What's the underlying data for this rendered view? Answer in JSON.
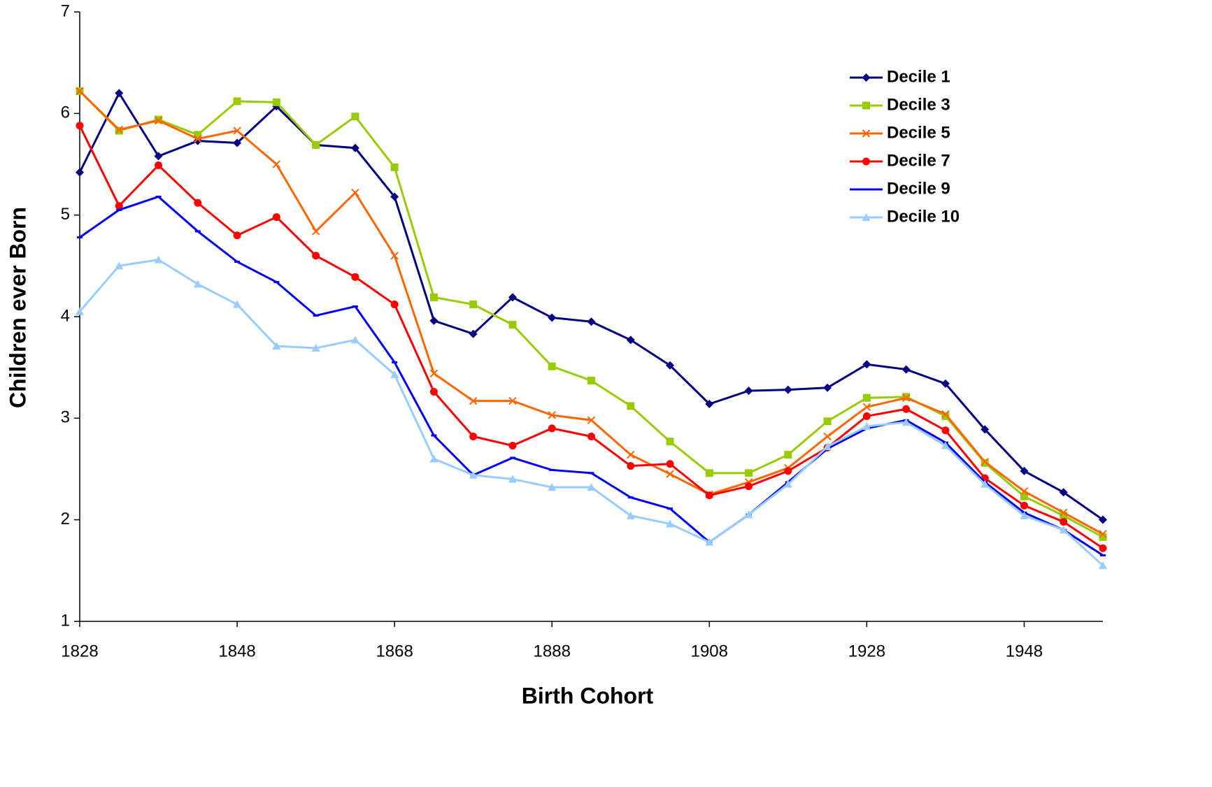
{
  "chart_data": {
    "type": "line",
    "xlabel": "Birth Cohort",
    "ylabel": "Children ever Born",
    "x": [
      1828,
      1833,
      1838,
      1843,
      1848,
      1853,
      1858,
      1863,
      1868,
      1873,
      1878,
      1883,
      1888,
      1893,
      1898,
      1903,
      1908,
      1913,
      1918,
      1923,
      1928,
      1933,
      1938,
      1943,
      1948,
      1953,
      1958
    ],
    "xlim": [
      1828,
      1958
    ],
    "xticks": [
      1828,
      1848,
      1868,
      1888,
      1908,
      1928,
      1948
    ],
    "ylim": [
      1,
      7
    ],
    "yticks": [
      1,
      2,
      3,
      4,
      5,
      6,
      7
    ],
    "legend": "upper right",
    "series": [
      {
        "name": "Decile 1",
        "color": "#000080",
        "marker": "diamond",
        "values": [
          5.42,
          6.2,
          5.58,
          5.73,
          5.71,
          6.07,
          5.69,
          5.66,
          5.18,
          3.96,
          3.83,
          4.19,
          3.99,
          3.95,
          3.77,
          3.52,
          3.14,
          3.27,
          3.28,
          3.3,
          3.53,
          3.48,
          3.34,
          2.89,
          2.48,
          2.27,
          2.0
        ]
      },
      {
        "name": "Decile 3",
        "color": "#99cc00",
        "marker": "square",
        "values": [
          6.22,
          5.83,
          5.94,
          5.79,
          6.12,
          6.11,
          5.69,
          5.97,
          5.47,
          4.19,
          4.12,
          3.92,
          3.51,
          3.37,
          3.12,
          2.77,
          2.46,
          2.46,
          2.64,
          2.97,
          3.2,
          3.21,
          3.02,
          2.56,
          2.23,
          2.04,
          1.83
        ]
      },
      {
        "name": "Decile 5",
        "color": "#ff6600",
        "marker": "x",
        "values": [
          6.22,
          5.84,
          5.93,
          5.75,
          5.83,
          5.5,
          4.84,
          5.22,
          4.6,
          3.44,
          3.17,
          3.17,
          3.03,
          2.98,
          2.64,
          2.45,
          2.25,
          2.37,
          2.51,
          2.82,
          3.11,
          3.2,
          3.04,
          2.57,
          2.28,
          2.07,
          1.86
        ]
      },
      {
        "name": "Decile 7",
        "color": "#ff0000",
        "marker": "circle",
        "values": [
          5.88,
          5.09,
          5.49,
          5.12,
          4.8,
          4.98,
          4.6,
          4.39,
          4.12,
          3.26,
          2.82,
          2.73,
          2.9,
          2.82,
          2.53,
          2.55,
          2.24,
          2.33,
          2.48,
          2.71,
          3.02,
          3.09,
          2.88,
          2.41,
          2.14,
          1.98,
          1.72
        ]
      },
      {
        "name": "Decile 9",
        "color": "#0000ff",
        "marker": "dash",
        "values": [
          4.78,
          5.05,
          5.18,
          4.84,
          4.54,
          4.34,
          4.01,
          4.1,
          3.55,
          2.83,
          2.44,
          2.61,
          2.49,
          2.46,
          2.22,
          2.11,
          1.78,
          2.05,
          2.37,
          2.7,
          2.9,
          2.98,
          2.76,
          2.37,
          2.07,
          1.9,
          1.65
        ]
      },
      {
        "name": "Decile 10",
        "color": "#99ccff",
        "marker": "triangle",
        "values": [
          4.05,
          4.5,
          4.56,
          4.32,
          4.12,
          3.71,
          3.69,
          3.77,
          3.43,
          2.6,
          2.44,
          2.4,
          2.32,
          2.32,
          2.04,
          1.96,
          1.78,
          2.05,
          2.35,
          2.72,
          2.92,
          2.96,
          2.73,
          2.35,
          2.04,
          1.9,
          1.55
        ]
      }
    ]
  }
}
